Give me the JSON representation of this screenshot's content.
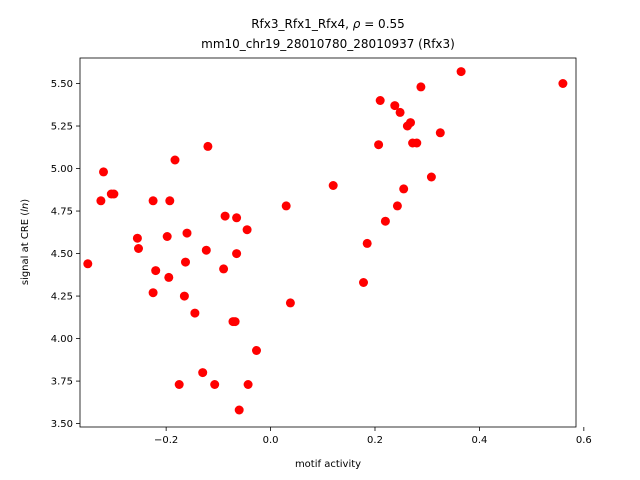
{
  "chart_data": {
    "type": "scatter",
    "title_line1": "Rfx3_Rfx1_Rfx4, ρ = 0.55",
    "title_line2": "mm10_chr19_28010780_28010937 (Rfx3)",
    "xlabel": "motif activity",
    "ylabel_prefix": "signal at CRE (",
    "ylabel_var": "ln",
    "ylabel_suffix": ")",
    "xlim": [
      -0.365,
      0.585
    ],
    "ylim": [
      3.48,
      5.65
    ],
    "xticks": [
      {
        "value": -0.2,
        "label": "−0.2"
      },
      {
        "value": 0.0,
        "label": "0.0"
      },
      {
        "value": 0.2,
        "label": "0.2"
      },
      {
        "value": 0.4,
        "label": "0.4"
      },
      {
        "value": 0.6,
        "label": "0.6"
      }
    ],
    "yticks": [
      {
        "value": 3.5,
        "label": "3.50"
      },
      {
        "value": 3.75,
        "label": "3.75"
      },
      {
        "value": 4.0,
        "label": "4.00"
      },
      {
        "value": 4.25,
        "label": "4.25"
      },
      {
        "value": 4.5,
        "label": "4.50"
      },
      {
        "value": 4.75,
        "label": "4.75"
      },
      {
        "value": 5.0,
        "label": "5.00"
      },
      {
        "value": 5.25,
        "label": "5.25"
      },
      {
        "value": 5.5,
        "label": "5.50"
      }
    ],
    "marker_color": "#ff0000",
    "grid": false,
    "points": [
      {
        "x": -0.35,
        "y": 4.44
      },
      {
        "x": -0.325,
        "y": 4.81
      },
      {
        "x": -0.32,
        "y": 4.98
      },
      {
        "x": -0.305,
        "y": 4.85
      },
      {
        "x": -0.3,
        "y": 4.85
      },
      {
        "x": -0.255,
        "y": 4.59
      },
      {
        "x": -0.253,
        "y": 4.53
      },
      {
        "x": -0.225,
        "y": 4.81
      },
      {
        "x": -0.225,
        "y": 4.27
      },
      {
        "x": -0.22,
        "y": 4.4
      },
      {
        "x": -0.198,
        "y": 4.6
      },
      {
        "x": -0.195,
        "y": 4.36
      },
      {
        "x": -0.193,
        "y": 4.81
      },
      {
        "x": -0.183,
        "y": 5.05
      },
      {
        "x": -0.175,
        "y": 3.73
      },
      {
        "x": -0.165,
        "y": 4.25
      },
      {
        "x": -0.163,
        "y": 4.45
      },
      {
        "x": -0.16,
        "y": 4.62
      },
      {
        "x": -0.145,
        "y": 4.15
      },
      {
        "x": -0.13,
        "y": 3.8
      },
      {
        "x": -0.123,
        "y": 4.52
      },
      {
        "x": -0.12,
        "y": 5.13
      },
      {
        "x": -0.107,
        "y": 3.73
      },
      {
        "x": -0.09,
        "y": 4.41
      },
      {
        "x": -0.087,
        "y": 4.72
      },
      {
        "x": -0.072,
        "y": 4.1
      },
      {
        "x": -0.068,
        "y": 4.1
      },
      {
        "x": -0.065,
        "y": 4.5
      },
      {
        "x": -0.065,
        "y": 4.71
      },
      {
        "x": -0.06,
        "y": 3.58
      },
      {
        "x": -0.045,
        "y": 4.64
      },
      {
        "x": -0.043,
        "y": 3.73
      },
      {
        "x": -0.027,
        "y": 3.93
      },
      {
        "x": 0.03,
        "y": 4.78
      },
      {
        "x": 0.038,
        "y": 4.21
      },
      {
        "x": 0.12,
        "y": 4.9
      },
      {
        "x": 0.178,
        "y": 4.33
      },
      {
        "x": 0.185,
        "y": 4.56
      },
      {
        "x": 0.207,
        "y": 5.14
      },
      {
        "x": 0.21,
        "y": 5.4
      },
      {
        "x": 0.22,
        "y": 4.69
      },
      {
        "x": 0.238,
        "y": 5.37
      },
      {
        "x": 0.243,
        "y": 4.78
      },
      {
        "x": 0.248,
        "y": 5.33
      },
      {
        "x": 0.255,
        "y": 4.88
      },
      {
        "x": 0.262,
        "y": 5.25
      },
      {
        "x": 0.268,
        "y": 5.27
      },
      {
        "x": 0.272,
        "y": 5.15
      },
      {
        "x": 0.28,
        "y": 5.15
      },
      {
        "x": 0.288,
        "y": 5.48
      },
      {
        "x": 0.308,
        "y": 4.95
      },
      {
        "x": 0.325,
        "y": 5.21
      },
      {
        "x": 0.365,
        "y": 5.57
      },
      {
        "x": 0.56,
        "y": 5.5
      }
    ]
  }
}
